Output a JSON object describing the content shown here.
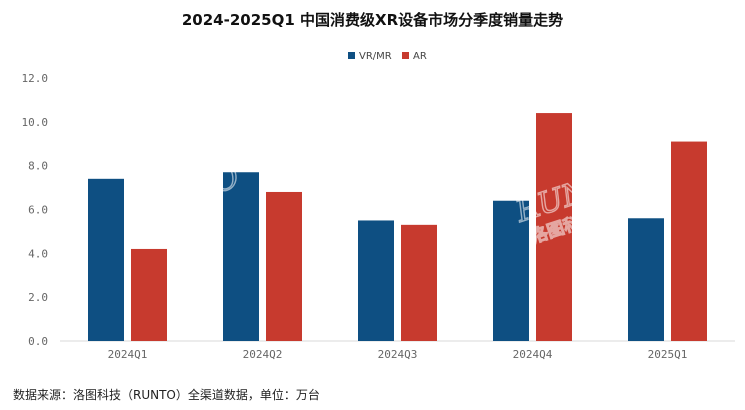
{
  "chart_data": {
    "type": "bar",
    "title": "2024-2025Q1 中国消费级XR设备市场分季度销量走势",
    "categories": [
      "2024Q1",
      "2024Q2",
      "2024Q3",
      "2024Q4",
      "2025Q1"
    ],
    "series": [
      {
        "name": "VR/MR",
        "values": [
          7.4,
          7.7,
          5.5,
          6.4,
          5.6
        ],
        "color": "#0e4f82"
      },
      {
        "name": "AR",
        "values": [
          4.2,
          6.8,
          5.3,
          10.4,
          9.1
        ],
        "color": "#c73a2e"
      }
    ],
    "ylim": [
      0,
      12
    ],
    "yticks": [
      "0.0",
      "2.0",
      "4.0",
      "6.0",
      "8.0",
      "10.0",
      "12.0"
    ],
    "xlabel": "",
    "ylabel": "",
    "grid": false,
    "legend_position": "top-center"
  },
  "footer": "数据来源：洛图科技（RUNTO）全渠道数据，单位：万台",
  "watermark": {
    "brand": "RUNTO",
    "sub": "洛图科技"
  }
}
